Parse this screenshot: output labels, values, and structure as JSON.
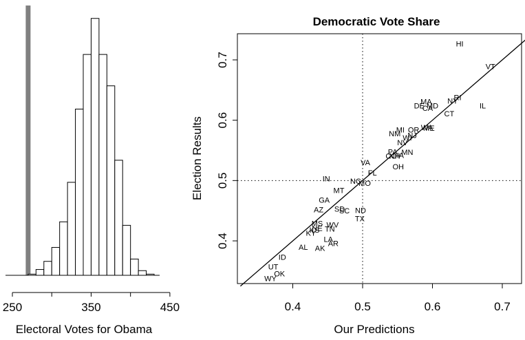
{
  "chart_data": [
    {
      "type": "bar",
      "subtype": "histogram",
      "xlabel": "Electoral Votes for Obama",
      "ylabel": "",
      "title": "",
      "xlim": [
        245,
        452
      ],
      "xticks": [
        "250",
        "350",
        "450"
      ],
      "bins": [
        {
          "x0": 270,
          "x1": 280,
          "count": 1
        },
        {
          "x0": 280,
          "x1": 290,
          "count": 5
        },
        {
          "x0": 290,
          "x1": 300,
          "count": 12
        },
        {
          "x0": 300,
          "x1": 310,
          "count": 24
        },
        {
          "x0": 310,
          "x1": 320,
          "count": 46
        },
        {
          "x0": 320,
          "x1": 330,
          "count": 80
        },
        {
          "x0": 330,
          "x1": 340,
          "count": 143
        },
        {
          "x0": 340,
          "x1": 350,
          "count": 190
        },
        {
          "x0": 350,
          "x1": 360,
          "count": 221
        },
        {
          "x0": 360,
          "x1": 370,
          "count": 190
        },
        {
          "x0": 370,
          "x1": 380,
          "count": 163
        },
        {
          "x0": 380,
          "x1": 390,
          "count": 99
        },
        {
          "x0": 390,
          "x1": 400,
          "count": 43
        },
        {
          "x0": 400,
          "x1": 410,
          "count": 14
        },
        {
          "x0": 410,
          "x1": 420,
          "count": 4
        },
        {
          "x0": 420,
          "x1": 430,
          "count": 1
        }
      ],
      "ymax": 225,
      "reference_line": {
        "x": 270,
        "color": "#808080"
      }
    },
    {
      "type": "scatter",
      "title": "Democratic Vote Share",
      "xlabel": "Our Predictions",
      "ylabel": "Election Results",
      "xlim": [
        0.325,
        0.74
      ],
      "ylim": [
        0.325,
        0.74
      ],
      "xticks": [
        "0.4",
        "0.5",
        "0.6",
        "0.7"
      ],
      "yticks": [
        "0.4",
        "0.5",
        "0.6",
        "0.7"
      ],
      "reference_lines": {
        "vertical": 0.5,
        "horizontal": 0.5,
        "diagonal": "y = x"
      },
      "points": [
        {
          "label": "HI",
          "x": 0.639,
          "y": 0.727
        },
        {
          "label": "VT",
          "x": 0.683,
          "y": 0.689
        },
        {
          "label": "RI",
          "x": 0.636,
          "y": 0.638
        },
        {
          "label": "NY",
          "x": 0.629,
          "y": 0.632
        },
        {
          "label": "IL",
          "x": 0.672,
          "y": 0.624
        },
        {
          "label": "MA",
          "x": 0.591,
          "y": 0.631
        },
        {
          "label": "DE",
          "x": 0.581,
          "y": 0.624
        },
        {
          "label": "MD",
          "x": 0.6,
          "y": 0.624
        },
        {
          "label": "CA",
          "x": 0.593,
          "y": 0.62
        },
        {
          "label": "CT",
          "x": 0.624,
          "y": 0.611
        },
        {
          "label": "WA",
          "x": 0.592,
          "y": 0.588
        },
        {
          "label": "ME",
          "x": 0.595,
          "y": 0.587
        },
        {
          "label": "MI",
          "x": 0.554,
          "y": 0.584
        },
        {
          "label": "OR",
          "x": 0.573,
          "y": 0.584
        },
        {
          "label": "NM",
          "x": 0.546,
          "y": 0.578
        },
        {
          "label": "NJ",
          "x": 0.571,
          "y": 0.575
        },
        {
          "label": "WI",
          "x": 0.564,
          "y": 0.571
        },
        {
          "label": "NV",
          "x": 0.557,
          "y": 0.563
        },
        {
          "label": "PA",
          "x": 0.543,
          "y": 0.548
        },
        {
          "label": "MN",
          "x": 0.564,
          "y": 0.547
        },
        {
          "label": "CO",
          "x": 0.541,
          "y": 0.541
        },
        {
          "label": "IA",
          "x": 0.554,
          "y": 0.542
        },
        {
          "label": "NH",
          "x": 0.546,
          "y": 0.541
        },
        {
          "label": "OH",
          "x": 0.551,
          "y": 0.523
        },
        {
          "label": "VA",
          "x": 0.504,
          "y": 0.53
        },
        {
          "label": "FL",
          "x": 0.514,
          "y": 0.513
        },
        {
          "label": "IN",
          "x": 0.448,
          "y": 0.503
        },
        {
          "label": "NC",
          "x": 0.49,
          "y": 0.499
        },
        {
          "label": "MO",
          "x": 0.503,
          "y": 0.496
        },
        {
          "label": "MT",
          "x": 0.466,
          "y": 0.484
        },
        {
          "label": "GA",
          "x": 0.445,
          "y": 0.468
        },
        {
          "label": "AZ",
          "x": 0.437,
          "y": 0.452
        },
        {
          "label": "SD",
          "x": 0.467,
          "y": 0.453
        },
        {
          "label": "SC",
          "x": 0.474,
          "y": 0.45
        },
        {
          "label": "ND",
          "x": 0.497,
          "y": 0.451
        },
        {
          "label": "TX",
          "x": 0.496,
          "y": 0.437
        },
        {
          "label": "MS",
          "x": 0.435,
          "y": 0.429
        },
        {
          "label": "WV",
          "x": 0.457,
          "y": 0.427
        },
        {
          "label": "NE",
          "x": 0.435,
          "y": 0.421
        },
        {
          "label": "TN",
          "x": 0.453,
          "y": 0.42
        },
        {
          "label": "KS",
          "x": 0.431,
          "y": 0.418
        },
        {
          "label": "KY",
          "x": 0.426,
          "y": 0.413
        },
        {
          "label": "LA",
          "x": 0.451,
          "y": 0.403
        },
        {
          "label": "AR",
          "x": 0.458,
          "y": 0.396
        },
        {
          "label": "AL",
          "x": 0.415,
          "y": 0.39
        },
        {
          "label": "AK",
          "x": 0.439,
          "y": 0.388
        },
        {
          "label": "ID",
          "x": 0.385,
          "y": 0.373
        },
        {
          "label": "UT",
          "x": 0.372,
          "y": 0.357
        },
        {
          "label": "OK",
          "x": 0.381,
          "y": 0.346
        },
        {
          "label": "WY",
          "x": 0.368,
          "y": 0.338
        }
      ]
    }
  ]
}
